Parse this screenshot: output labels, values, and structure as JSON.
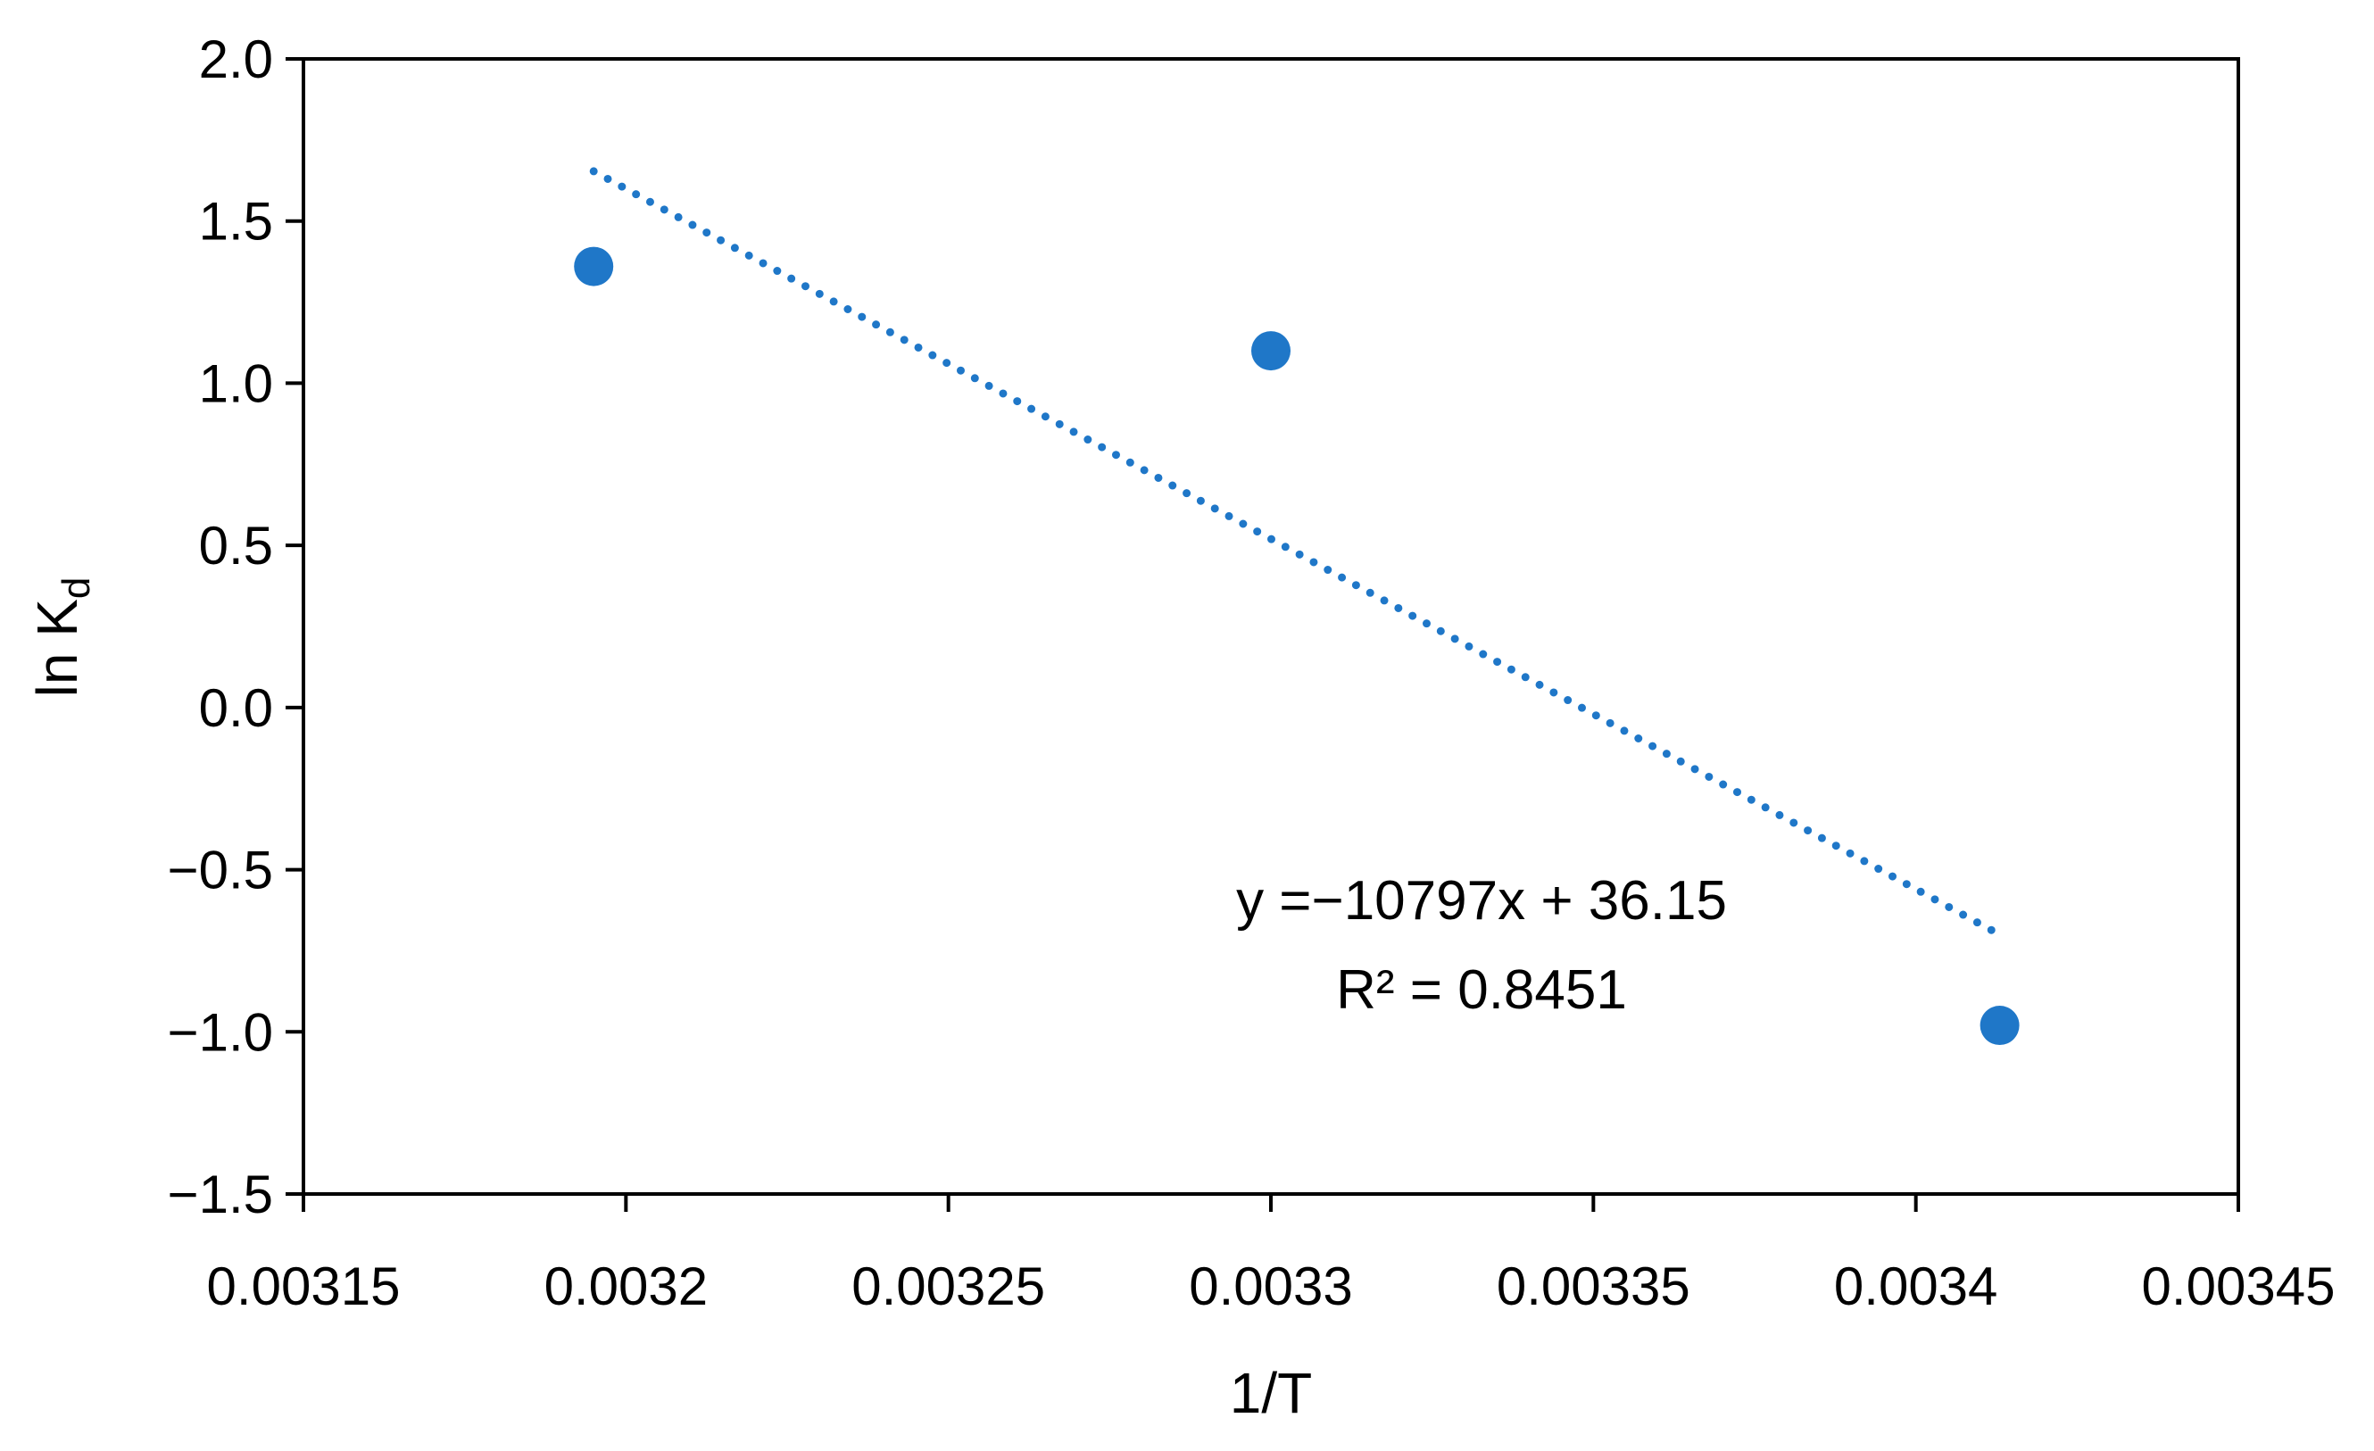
{
  "chart_data": {
    "type": "scatter",
    "title": "",
    "xlabel": "1/T",
    "ylabel": "ln K",
    "ylabel_subscript": "d",
    "xlim": [
      0.00315,
      0.00345
    ],
    "ylim": [
      -1.5,
      2.0
    ],
    "x_ticks": [
      0.00315,
      0.0032,
      0.00325,
      0.0033,
      0.00335,
      0.0034,
      0.00345
    ],
    "x_tick_labels": [
      "0.00315",
      "0.0032",
      "0.00325",
      "0.0033",
      "0.00335",
      "0.0034",
      "0.00345"
    ],
    "y_ticks": [
      2.0,
      1.5,
      1.0,
      0.5,
      0.0,
      -0.5,
      -1.0,
      -1.5
    ],
    "y_tick_labels": [
      "2.0",
      "1.5",
      "1.0",
      "0.5",
      "0.0",
      "−0.5",
      "−1.0",
      "−1.5"
    ],
    "grid": false,
    "legend": "none",
    "series": [
      {
        "x": [
          0.003195,
          0.0033,
          0.003413
        ],
        "y": [
          1.36,
          1.1,
          -0.98
        ],
        "color": "#1f77c8"
      }
    ],
    "trendline": {
      "type": "linear",
      "slope": -10797,
      "intercept": 36.15,
      "x_range": [
        0.003195,
        0.003413
      ],
      "style": "dotted",
      "color": "#1f77c8"
    },
    "annotations": {
      "equation": "y =−10797x + 36.15",
      "r_squared": "R² = 0.8451"
    }
  }
}
